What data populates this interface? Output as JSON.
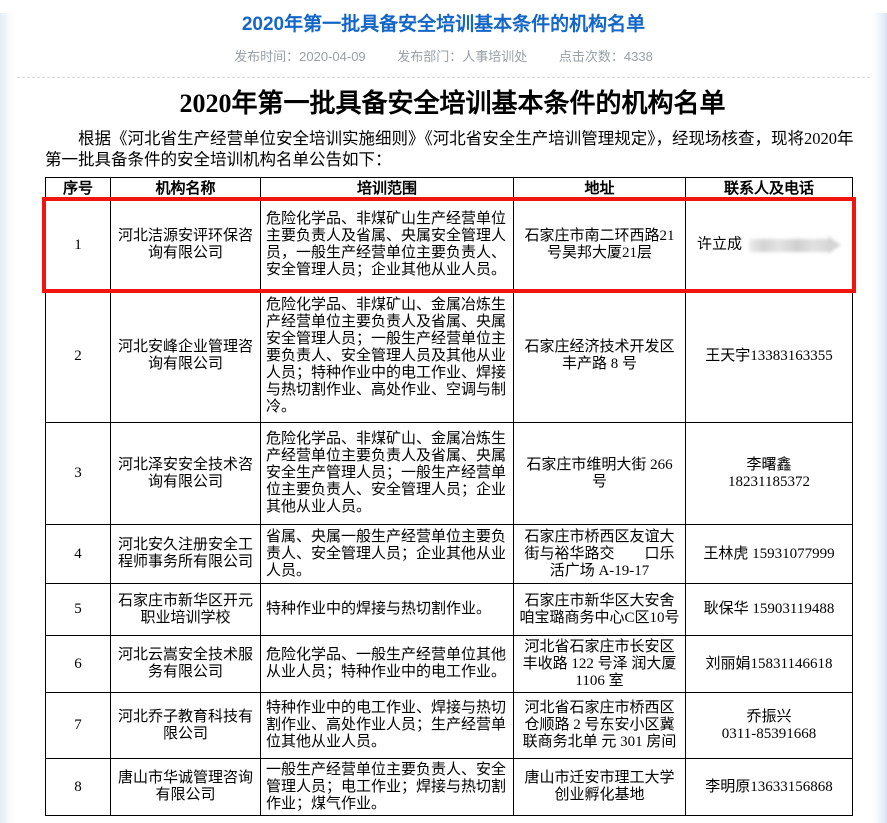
{
  "colors": {
    "title_blue": "#1467c8",
    "highlight_red": "#f2150f"
  },
  "header": {
    "title": "2020年第一批具备安全培训基本条件的机构名单",
    "meta": {
      "publish_time": "发布时间：2020-04-09",
      "department": "发布部门：人事培训处",
      "clicks": "点击次数：4338"
    }
  },
  "article": {
    "heading": "2020年第一批具备安全培训基本条件的机构名单",
    "intro": "根据《河北省生产经营单位安全培训实施细则》《河北省安全生产培训管理规定》，经现场核查，现将2020年第一批具备条件的安全培训机构名单公告如下："
  },
  "table": {
    "headers": [
      "序号",
      "机构名称",
      "培训范围",
      "地址",
      "联系人及电话"
    ],
    "rows": [
      {
        "no": "1",
        "name": "河北洁源安评环保咨询有限公司",
        "scope": "危险化学品、非煤矿山生产经营单位主要负责人及省属、央属安全管理人员，一般生产经营单位主要负责人、安全管理人员；企业其他从业人员。",
        "address": "石家庄市南二环西路21号昊邦大厦21层",
        "contact": "许立成",
        "phone_redacted": true,
        "highlighted": true
      },
      {
        "no": "2",
        "name": "河北安峰企业管理咨询有限公司",
        "scope": "危险化学品、非煤矿山、金属冶炼生产经营单位主要负责人及省属、央属安全管理人员；一般生产经营单位主要负责人、安全管理人员及其他从业人员；特种作业中的电工作业、焊接与热切割作业、高处作业、空调与制冷。",
        "address": "石家庄经济技术开发区丰产路 8 号",
        "contact": "王天宇13383163355"
      },
      {
        "no": "3",
        "name": "河北泽安安全技术咨询有限公司",
        "scope": "危险化学品、非煤矿山、金属冶炼生产经营单位主要负责人及省属、央属安全生产管理人员；一般生产经营单位主要负责人、安全管理人员；企业其他从业人员。",
        "address": "石家庄市维明大街 266 号",
        "contact": "李曙鑫\n18231185372"
      },
      {
        "no": "4",
        "name": "河北安久注册安全工程师事务所有限公司",
        "scope": "省属、央属一般生产经营单位主要负责人、安全管理人员；企业其他从业人员。",
        "address": "石家庄市桥西区友谊大街与裕华路交　　口乐活广场 A-19-17",
        "contact": "王林虎 15931077999"
      },
      {
        "no": "5",
        "name": "石家庄市新华区开元职业培训学校",
        "scope": "特种作业中的焊接与热切割作业。",
        "address": "石家庄市新华区大安舍咱宝璐商务中心C区10号",
        "contact": "耿保华 15903119488"
      },
      {
        "no": "6",
        "name": "河北云嵩安全技术服务有限公司",
        "scope": "危险化学品、一般生产经营单位其他从业人员；特种作业中的电工作业。",
        "address": "河北省石家庄市长安区丰收路 122 号泽 润大厦 1106 室",
        "contact": "刘丽娟15831146618"
      },
      {
        "no": "7",
        "name": "河北乔子教育科技有限公司",
        "scope": "特种作业中的电工作业、焊接与热切割作业、高处作业人员；生产经营单位其他从业人员。",
        "address": "河北省石家庄市桥西区仓顺路 2 号东安小区冀联商务北单 元 301 房间",
        "contact": "乔振兴\n0311-85391668"
      },
      {
        "no": "8",
        "name": "唐山市华诚管理咨询有限公司",
        "scope": "一般生产经营单位主要负责人、安全管理人员；电工作业；焊接与热切割作业；煤气作业。",
        "address": "唐山市迁安市理工大学创业孵化基地",
        "contact": "李明原13633156868"
      }
    ]
  }
}
